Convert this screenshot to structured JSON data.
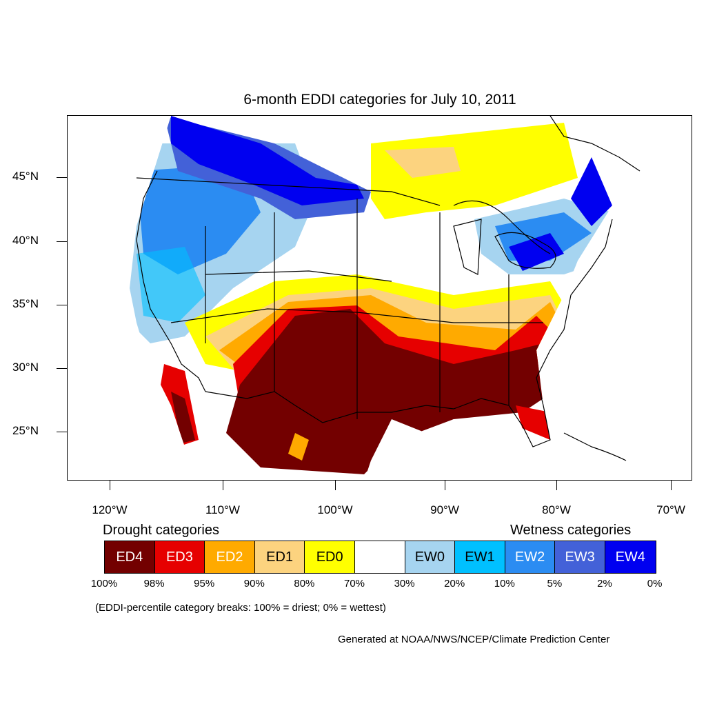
{
  "title": "6-month EDDI categories for July 10, 2011",
  "map": {
    "region": "Contiguous United States",
    "latitude_labels": [
      "45°N",
      "40°N",
      "35°N",
      "30°N",
      "25°N"
    ],
    "longitude_labels": [
      "120°W",
      "110°W",
      "100°W",
      "90°W",
      "80°W",
      "70°W"
    ],
    "patterns": [
      {
        "area": "Southern Plains (Texas, Oklahoma, New Mexico), northern Mexico",
        "category": "ED4"
      },
      {
        "area": "Lower Mississippi valley, Gulf coast, Georgia, Florida, South Carolina",
        "category": "ED4"
      },
      {
        "area": "Baja California and Gulf of California coast",
        "category": "ED4"
      },
      {
        "area": "Southeast Atlantic coast, North Carolina",
        "category": "ED3"
      },
      {
        "area": "Kansas, Arkansas, Tennessee, Virginia",
        "category": "ED2"
      },
      {
        "area": "Central Plains, Missouri, Kentucky, Arizona",
        "category": "ED0"
      },
      {
        "area": "Upper Midwest, Wisconsin, Ontario",
        "category": "ED0"
      },
      {
        "area": "Northern Rockies, Montana, Idaho, Washington",
        "category": "EW4"
      },
      {
        "area": "Pacific Northwest, California, Great Basin",
        "category": "EW2"
      },
      {
        "area": "Great Lakes, Ohio, Pennsylvania, New York, New England",
        "category": "EW2"
      },
      {
        "area": "Southern Quebec",
        "category": "EW4"
      }
    ]
  },
  "legend": {
    "drought_label": "Drought categories",
    "wetness_label": "Wetness categories",
    "categories": [
      {
        "label": "ED4",
        "color": "#730000",
        "text_color": "#ffffff"
      },
      {
        "label": "ED3",
        "color": "#e60000",
        "text_color": "#ffffff"
      },
      {
        "label": "ED2",
        "color": "#ffaa00",
        "text_color": "#ffffff"
      },
      {
        "label": "ED1",
        "color": "#fcd37f",
        "text_color": "#000000"
      },
      {
        "label": "ED0",
        "color": "#ffff00",
        "text_color": "#000000"
      },
      {
        "label": "",
        "color": "#ffffff",
        "text_color": "#000000"
      },
      {
        "label": "EW0",
        "color": "#a6d4f0",
        "text_color": "#000000"
      },
      {
        "label": "EW1",
        "color": "#00c0ff",
        "text_color": "#000000"
      },
      {
        "label": "EW2",
        "color": "#2b8cf2",
        "text_color": "#ffffff"
      },
      {
        "label": "EW3",
        "color": "#4361d8",
        "text_color": "#ffffff"
      },
      {
        "label": "EW4",
        "color": "#0000f0",
        "text_color": "#ffffff"
      }
    ],
    "percentiles": [
      "100%",
      "98%",
      "95%",
      "90%",
      "80%",
      "70%",
      "30%",
      "20%",
      "10%",
      "5%",
      "2%",
      "0%"
    ]
  },
  "note": "(EDDI-percentile category breaks: 100% = driest; 0% = wettest)",
  "credit": "Generated at NOAA/NWS/NCEP/Climate Prediction Center"
}
